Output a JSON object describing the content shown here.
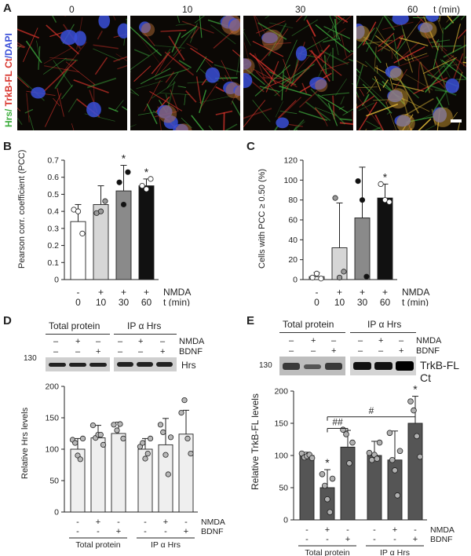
{
  "panel_a": {
    "letter": "A",
    "time_labels": [
      "0",
      "10",
      "30",
      "60"
    ],
    "time_unit": "t (min)",
    "stain_hrs": "Hrs/",
    "stain_trkb": " TrkB-FL Ct",
    "stain_dapi": "/DAPI",
    "colors": {
      "hrs": "#3fae3f",
      "trkb": "#d8332b",
      "dapi": "#3a4fd8"
    }
  },
  "panel_b": {
    "letter": "B",
    "ylabel": "Pearson corr. coefficient (PCC)",
    "nmda_label": "NMDA",
    "t_label": "t (min)"
  },
  "panel_c": {
    "letter": "C",
    "ylabel": "Cells with PCC ≥ 0.50 (%)",
    "nmda_label": "NMDA",
    "t_label": "t (min)"
  },
  "panel_d": {
    "letter": "D",
    "blot_header_total": "Total protein",
    "blot_header_ip": "IP α Hrs",
    "nmda_label": "NMDA",
    "bdnf_label": "BDNF",
    "mw_marker": "130",
    "band_label": "Hrs",
    "ylabel": "Relative Hrs levels",
    "group_total": "Total protein",
    "group_ip": "IP α Hrs"
  },
  "panel_e": {
    "letter": "E",
    "blot_header_total": "Total protein",
    "blot_header_ip": "IP α Hrs",
    "nmda_label": "NMDA",
    "bdnf_label": "BDNF",
    "mw_marker": "130",
    "band_label": "TrkB-FL Ct",
    "ylabel": "Relative TrkB-FL levels",
    "group_total": "Total protein",
    "group_ip": "IP α Hrs",
    "sig_hash": "#",
    "sig_double_hash": "##"
  },
  "chart_data": [
    {
      "id": "B",
      "type": "bar",
      "categories": [
        "0",
        "10",
        "30",
        "60"
      ],
      "nmda": [
        "-",
        "+",
        "+",
        "+"
      ],
      "values": [
        0.34,
        0.44,
        0.52,
        0.55
      ],
      "errors": [
        0.1,
        0.11,
        0.15,
        0.04
      ],
      "points": [
        [
          0.41,
          0.4,
          0.27
        ],
        [
          0.39,
          0.4,
          0.46
        ],
        [
          0.57,
          0.44,
          0.63
        ],
        [
          0.55,
          0.53,
          0.59
        ]
      ],
      "significance": [
        "",
        "",
        "*",
        "*"
      ],
      "bar_colors": [
        "#ffffff",
        "#d6d6d6",
        "#8a8a8a",
        "#111111"
      ],
      "ylim": [
        0,
        0.7
      ],
      "yticks": [
        "0",
        "0.1",
        "0.2",
        "0.3",
        "0.4",
        "0.5",
        "0.6",
        "0.7"
      ],
      "ylabel": "Pearson corr. coefficient (PCC)",
      "xlabel": "t (min)"
    },
    {
      "id": "C",
      "type": "bar",
      "categories": [
        "0",
        "10",
        "30",
        "60"
      ],
      "nmda": [
        "-",
        "+",
        "+",
        "+"
      ],
      "values": [
        3,
        32,
        62,
        82
      ],
      "errors": [
        4,
        45,
        51,
        14
      ],
      "points": [
        [
          2,
          6,
          1
        ],
        [
          82,
          2,
          8
        ],
        [
          99,
          80,
          3
        ],
        [
          96,
          80,
          78
        ]
      ],
      "significance": [
        "",
        "",
        "",
        "*"
      ],
      "bar_colors": [
        "#ffffff",
        "#d6d6d6",
        "#8a8a8a",
        "#111111"
      ],
      "ylim": [
        0,
        120
      ],
      "yticks": [
        "0",
        "20",
        "40",
        "60",
        "80",
        "100",
        "120"
      ],
      "ylabel": "Cells with PCC ≥ 0.50 (%)",
      "xlabel": "t (min)"
    },
    {
      "id": "D",
      "type": "bar",
      "categories": [
        "Total protein -",
        "Total protein NMDA",
        "Total protein BDNF",
        "IP -",
        "IP NMDA",
        "IP BDNF"
      ],
      "nmda": [
        "-",
        "+",
        "-",
        "-",
        "+",
        "-"
      ],
      "bdnf": [
        "-",
        "-",
        "+",
        "-",
        "-",
        "+"
      ],
      "values": [
        100,
        118,
        125,
        100,
        107,
        124
      ],
      "errors": [
        17,
        20,
        18,
        17,
        42,
        38
      ],
      "points": [
        [
          115,
          110,
          90,
          84,
          117
        ],
        [
          138,
          118,
          123,
          123,
          107
        ],
        [
          139,
          130,
          140,
          117
        ],
        [
          104,
          110,
          85,
          93,
          117
        ],
        [
          139,
          127,
          91,
          60,
          119
        ],
        [
          158,
          178,
          117,
          93
        ]
      ],
      "bar_colors": [
        "#efefef",
        "#efefef",
        "#efefef",
        "#efefef",
        "#efefef",
        "#efefef"
      ],
      "ylim": [
        0,
        200
      ],
      "yticks": [
        "0",
        "50",
        "100",
        "150",
        "200"
      ],
      "ylabel": "Relative Hrs levels"
    },
    {
      "id": "E",
      "type": "bar",
      "categories": [
        "Total protein -",
        "Total protein NMDA",
        "Total protein BDNF",
        "IP -",
        "IP NMDA",
        "IP BDNF"
      ],
      "nmda": [
        "-",
        "+",
        "-",
        "-",
        "+",
        "-"
      ],
      "bdnf": [
        "-",
        "-",
        "+",
        "-",
        "-",
        "+"
      ],
      "values": [
        100,
        50,
        113,
        100,
        93,
        150
      ],
      "errors": [
        5,
        28,
        26,
        22,
        45,
        42
      ],
      "points": [
        [
          103,
          97,
          99,
          101,
          96
        ],
        [
          71,
          53,
          32,
          12,
          64
        ],
        [
          140,
          133,
          88,
          120
        ],
        [
          104,
          93,
          101,
          95,
          120
        ],
        [
          135,
          93,
          77,
          38,
          107
        ],
        [
          184,
          170,
          130,
          98
        ]
      ],
      "significance": [
        "",
        "*",
        "",
        "",
        "",
        "*"
      ],
      "bar_colors": [
        "#555555",
        "#555555",
        "#555555",
        "#555555",
        "#555555",
        "#555555"
      ],
      "ylim": [
        0,
        200
      ],
      "yticks": [
        "0",
        "50",
        "100",
        "150",
        "200"
      ],
      "ylabel": "Relative TrkB-FL levels"
    }
  ]
}
